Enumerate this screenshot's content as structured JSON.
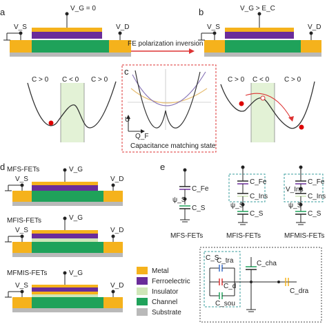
{
  "panels": {
    "a": "a",
    "b": "b",
    "c": "c",
    "d": "d",
    "e": "e"
  },
  "top": {
    "vg_a": "V_G = 0",
    "vg_b": "V_G > E_C",
    "vs": "V_S",
    "vd": "V_D",
    "arrow_label": "FE polarization inversion"
  },
  "energy": {
    "c_pos": "C > 0",
    "c_neg": "C < 0",
    "axis_u": "U",
    "axis_q": "Q_F",
    "caption": "Capacitance matching state"
  },
  "fets": {
    "mfs": "MFS-FETs",
    "mfis": "MFIS-FETs",
    "mfmis": "MFMIS-FETs",
    "vg": "V_G",
    "vs": "V_S",
    "vd": "V_D"
  },
  "legend": [
    {
      "label": "Metal",
      "color": "#f5b21c"
    },
    {
      "label": "Ferroelectric",
      "color": "#6a2c9a"
    },
    {
      "label": "Insulator",
      "color": "#cfe6b8"
    },
    {
      "label": "Channel",
      "color": "#1fa25a"
    },
    {
      "label": "Substrate",
      "color": "#b9b9b9"
    }
  ],
  "circuits": {
    "mfs": "MFS-FETs",
    "mfis": "MFIS-FETs",
    "mfmis": "MFMIS-FETs",
    "cfe": "C_Fe",
    "cins": "C_Ins",
    "cs": "C_S",
    "psi": "ψ_S",
    "vins": "V_Ins",
    "ctra": "C_tra",
    "cd": "C_d",
    "csou": "C_sou",
    "ccha": "C_cha",
    "cdra": "C_dra",
    "cs_box": "C_S"
  },
  "colors": {
    "metal": "#f5b21c",
    "ferro": "#6a2c9a",
    "insulator": "#cfe6b8",
    "channel": "#1fa25a",
    "substrate": "#b9b9b9",
    "red_dash": "#d33",
    "teal_dash": "#3a9e9e"
  }
}
